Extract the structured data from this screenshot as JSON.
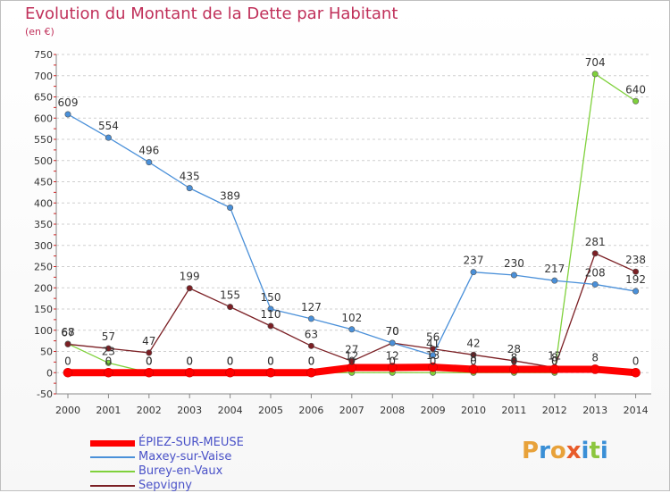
{
  "chart_data": {
    "type": "line",
    "title": "Evolution du Montant de la Dette par Habitant",
    "subtitle": "(en €)",
    "x": [
      "2000",
      "2001",
      "2002",
      "2003",
      "2004",
      "2005",
      "2006",
      "2007",
      "2008",
      "2009",
      "2010",
      "2011",
      "2012",
      "2013",
      "2014"
    ],
    "y_ticks": [
      "-50",
      "0",
      "50",
      "100",
      "150",
      "200",
      "250",
      "300",
      "350",
      "400",
      "450",
      "500",
      "550",
      "600",
      "650",
      "700",
      "750"
    ],
    "ylim": [
      -50,
      750
    ],
    "grid": "horizontal dashed",
    "legend_placement": "bottom-left",
    "series": [
      {
        "name": "ÉPIEZ-SUR-MEUSE",
        "color": "#ff0000",
        "values": [
          0,
          0,
          0,
          0,
          0,
          0,
          0,
          12,
          12,
          13,
          8,
          8,
          8,
          8,
          0
        ],
        "labels": [
          "0",
          "0",
          "0",
          "0",
          "0",
          "0",
          "0",
          "12",
          "12",
          "13",
          "8",
          "8",
          "8",
          "8",
          "0"
        ]
      },
      {
        "name": "Maxey-sur-Vaise",
        "color": "#4a90d9",
        "values": [
          609,
          554,
          496,
          435,
          389,
          150,
          127,
          102,
          70,
          41,
          237,
          230,
          217,
          208,
          192
        ],
        "labels": [
          "609",
          "554",
          "496",
          "435",
          "389",
          "150",
          "127",
          "102",
          "70",
          "41",
          "237",
          "230",
          "217",
          "208",
          "192"
        ]
      },
      {
        "name": "Burey-en-Vaux",
        "color": "#7fd13b",
        "values": [
          68,
          23,
          0,
          0,
          0,
          0,
          0,
          0,
          0,
          0,
          0,
          0,
          0,
          704,
          640
        ],
        "labels": [
          "68",
          "23",
          "0",
          "0",
          "0",
          "0",
          "0",
          "0",
          "0",
          "0",
          "0",
          "0",
          "0",
          "704",
          "640"
        ]
      },
      {
        "name": "Sepvigny",
        "color": "#7b1f24",
        "values": [
          67,
          57,
          47,
          199,
          155,
          110,
          63,
          27,
          70,
          56,
          42,
          28,
          12,
          281,
          238
        ],
        "labels": [
          "67",
          "57",
          "47",
          "199",
          "155",
          "110",
          "63",
          "27",
          "70",
          "56",
          "42",
          "28",
          "12",
          "281",
          "238"
        ]
      }
    ]
  },
  "logo": {
    "letters": [
      {
        "ch": "P",
        "color": "#e8a23a"
      },
      {
        "ch": "r",
        "color": "#3a8fd6"
      },
      {
        "ch": "o",
        "color": "#e8a23a"
      },
      {
        "ch": "x",
        "color": "#e85b2a"
      },
      {
        "ch": "i",
        "color": "#3a8fd6"
      },
      {
        "ch": "t",
        "color": "#8cc63f"
      },
      {
        "ch": "i",
        "color": "#3a8fd6"
      }
    ]
  }
}
